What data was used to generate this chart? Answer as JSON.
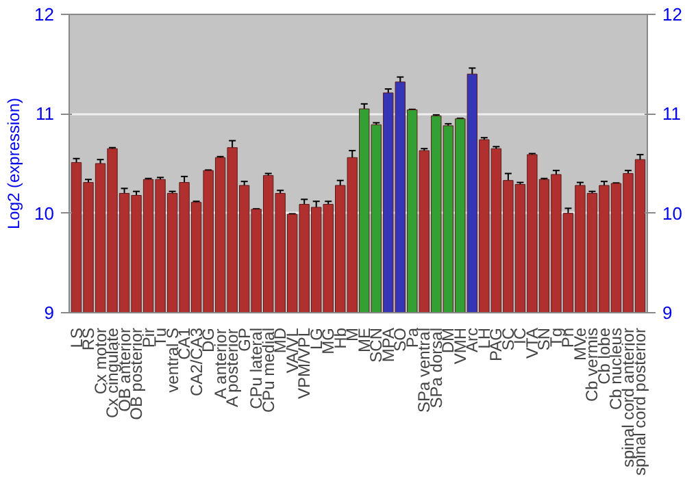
{
  "chart_data": {
    "type": "bar",
    "ylabel": "Log2 (expression)",
    "categories": [
      "LS",
      "RS",
      "Cx motor",
      "Cx cingulate",
      "OB anterior",
      "OB posterior",
      "Pir",
      "Tu",
      "ventral S",
      "CA1",
      "CA2/CA3",
      "DG",
      "A anterior",
      "A posterior",
      "GP",
      "CPu lateral",
      "CPu medial",
      "MD",
      "VA/VL",
      "VPM/VPL",
      "LG",
      "MG",
      "Hb",
      "M",
      "ME",
      "SCN",
      "MPA",
      "SO",
      "Pa",
      "SPa ventral",
      "SPa dorsal",
      "DM",
      "VMH",
      "Arc",
      "LH",
      "PAG",
      "SC",
      "IC",
      "VTA",
      "SN",
      "Tg",
      "Pn",
      "MVe",
      "Cb vermis",
      "Cb lobe",
      "Cb nucleus",
      "spinal cord anterior",
      "spinal cord posterior"
    ],
    "values": [
      10.51,
      10.31,
      10.5,
      10.65,
      10.2,
      10.18,
      10.34,
      10.34,
      10.2,
      10.31,
      10.11,
      10.43,
      10.56,
      10.66,
      10.28,
      10.04,
      10.38,
      10.2,
      9.99,
      10.09,
      10.06,
      10.09,
      10.28,
      10.56,
      11.05,
      10.89,
      11.21,
      11.32,
      11.04,
      10.63,
      10.98,
      10.88,
      10.95,
      11.4,
      10.74,
      10.65,
      10.33,
      10.29,
      10.59,
      10.34,
      10.39,
      10.0,
      10.28,
      10.2,
      10.28,
      10.3,
      10.4,
      10.54
    ],
    "errors": [
      0.04,
      0.03,
      0.04,
      0.01,
      0.05,
      0.04,
      0.01,
      0.02,
      0.02,
      0.06,
      0.01,
      0.005,
      0.01,
      0.07,
      0.04,
      0.005,
      0.02,
      0.03,
      0.005,
      0.05,
      0.06,
      0.03,
      0.05,
      0.07,
      0.05,
      0.02,
      0.04,
      0.05,
      0.005,
      0.02,
      0.01,
      0.02,
      0.005,
      0.06,
      0.02,
      0.02,
      0.07,
      0.02,
      0.01,
      0.01,
      0.04,
      0.05,
      0.03,
      0.02,
      0.04,
      0.005,
      0.03,
      0.05
    ],
    "colors": [
      "#b03030",
      "#b03030",
      "#b03030",
      "#b03030",
      "#b03030",
      "#b03030",
      "#b03030",
      "#b03030",
      "#b03030",
      "#b03030",
      "#b03030",
      "#b03030",
      "#b03030",
      "#b03030",
      "#b03030",
      "#b03030",
      "#b03030",
      "#b03030",
      "#b03030",
      "#b03030",
      "#b03030",
      "#b03030",
      "#b03030",
      "#b03030",
      "#33a033",
      "#33a033",
      "#3535b5",
      "#3535b5",
      "#33a033",
      "#b03030",
      "#33a033",
      "#33a033",
      "#33a033",
      "#3535b5",
      "#b03030",
      "#b03030",
      "#b03030",
      "#b03030",
      "#b03030",
      "#b03030",
      "#b03030",
      "#b03030",
      "#b03030",
      "#b03030",
      "#b03030",
      "#b03030",
      "#b03030",
      "#b03030"
    ],
    "ylim": [
      9,
      12
    ],
    "yticks": [
      9,
      10,
      11,
      12
    ],
    "y2lim": [
      9,
      12
    ],
    "y2ticks": [
      9,
      10,
      11,
      12
    ],
    "grid": "y"
  }
}
